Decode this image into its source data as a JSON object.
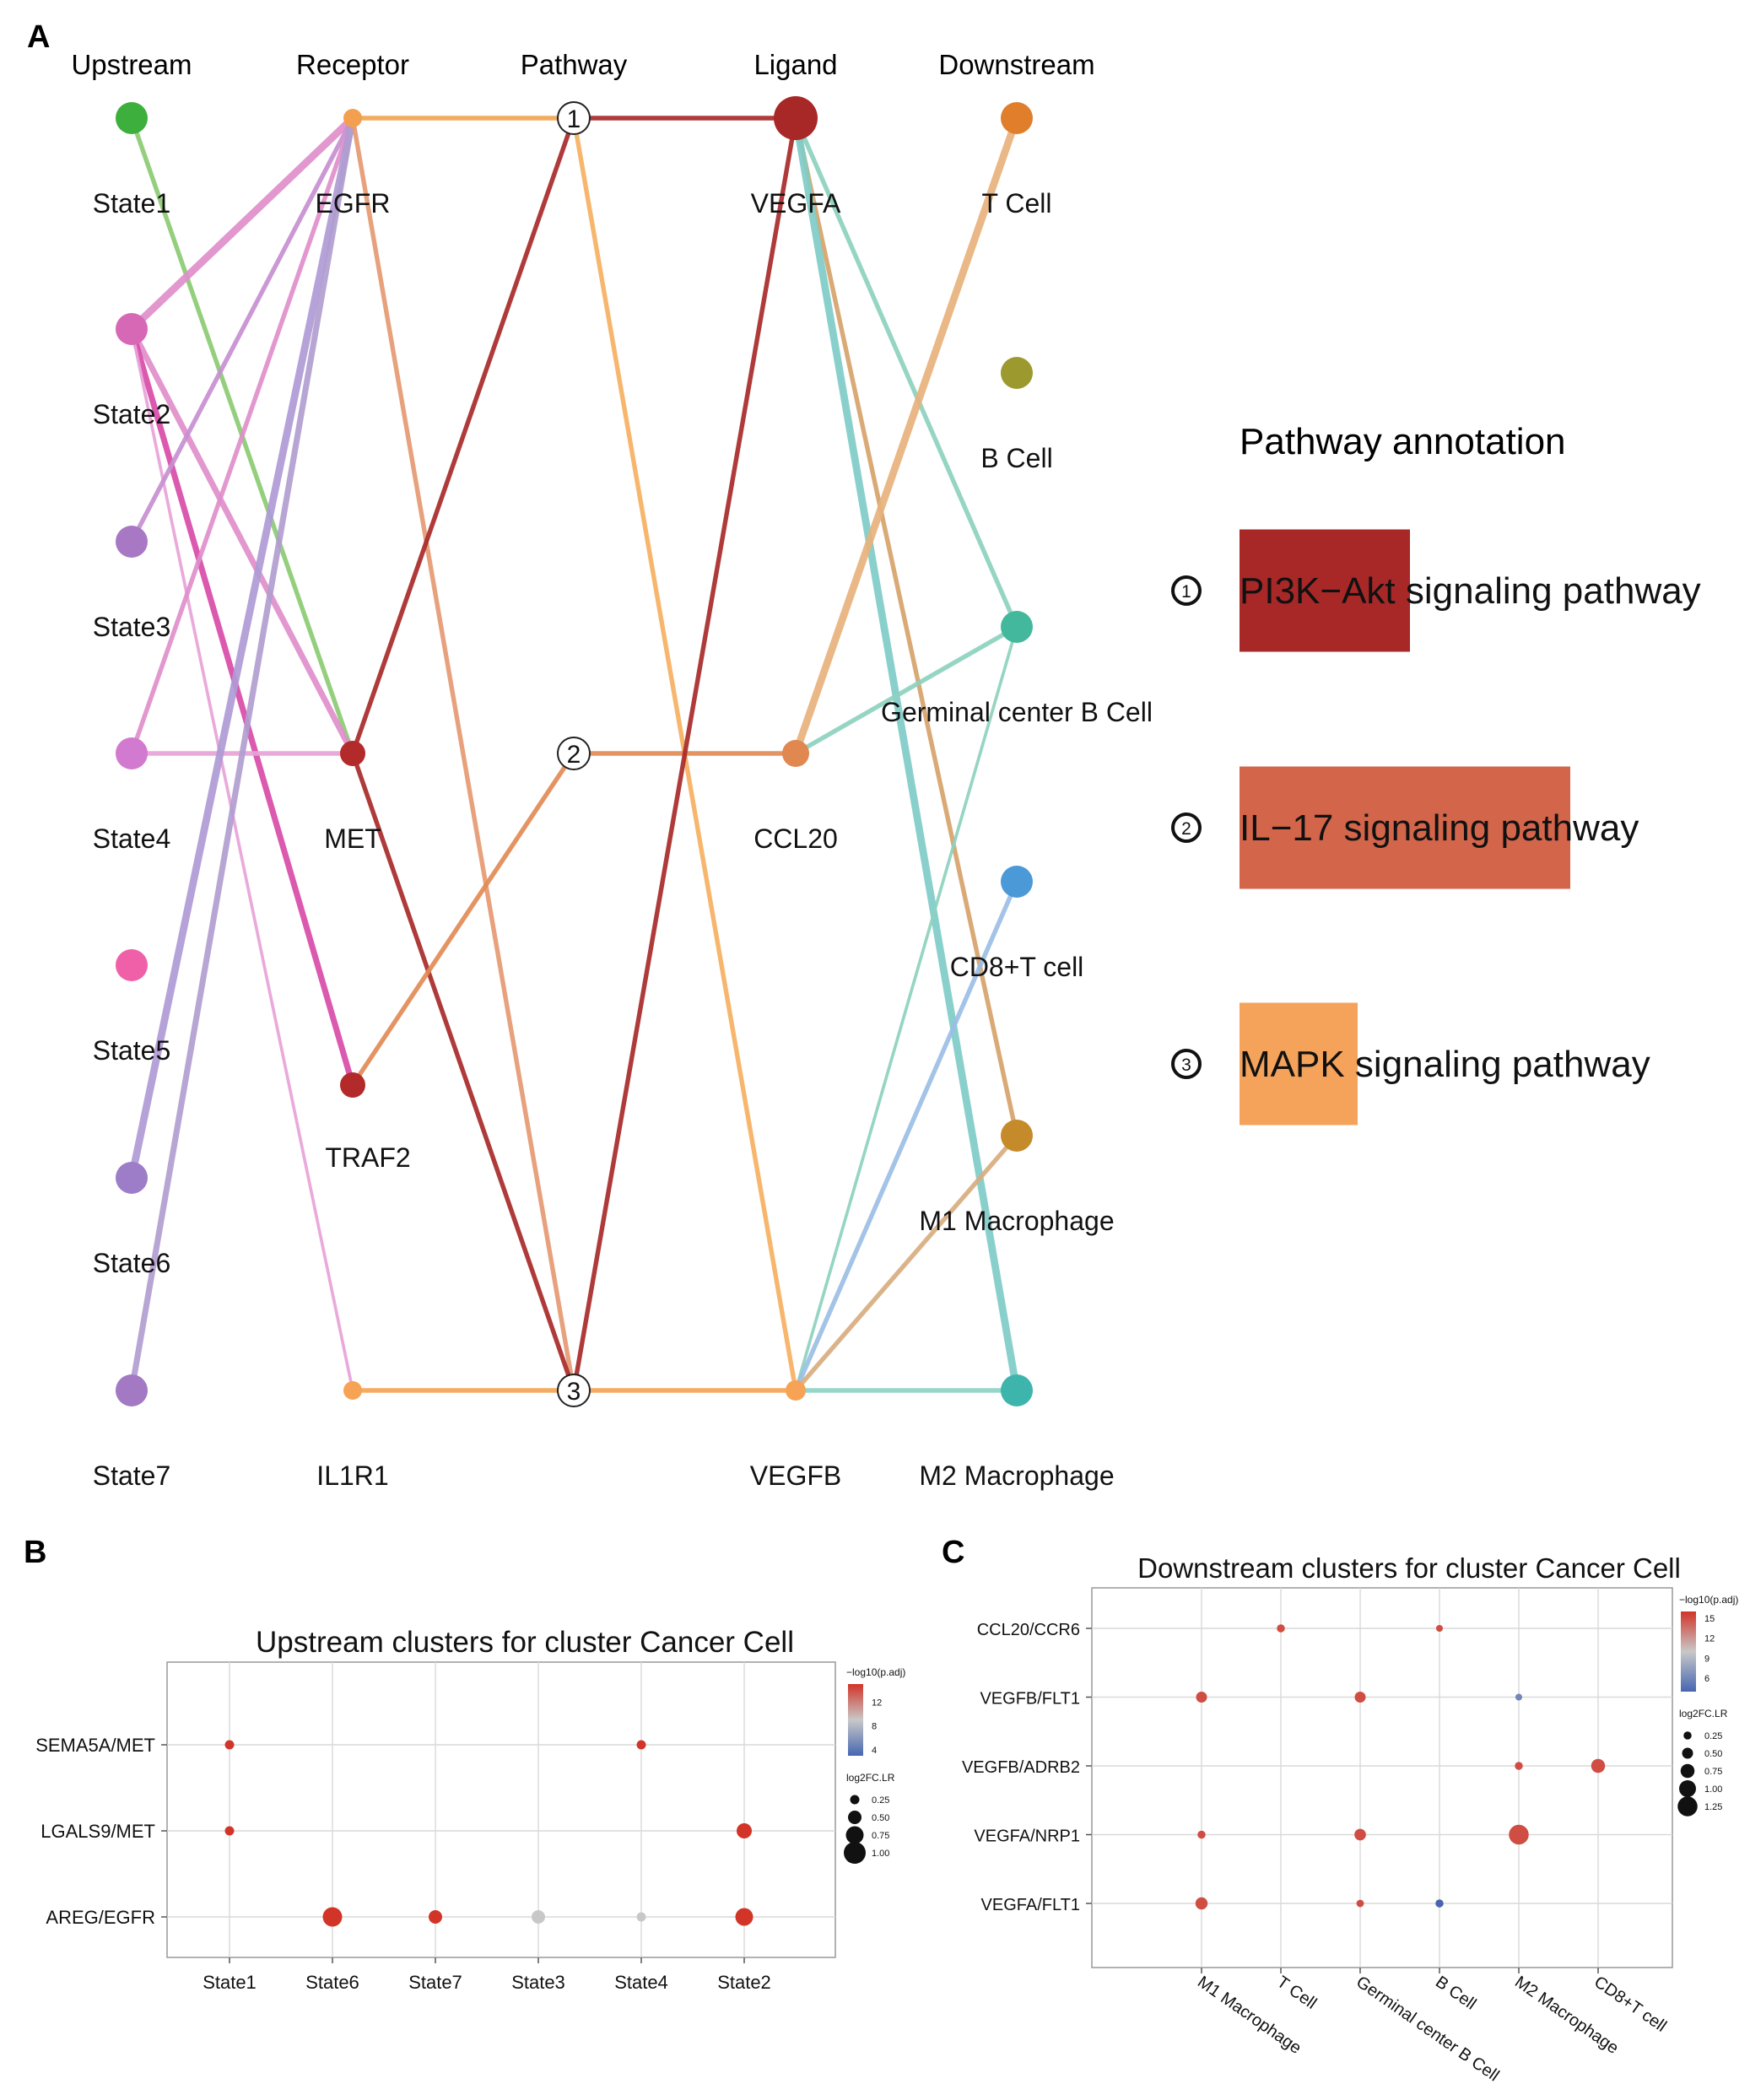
{
  "panels": {
    "A": {
      "letter": "A",
      "columns": [
        "Upstream",
        "Receptor",
        "Pathway",
        "Ligand",
        "Downstream"
      ],
      "annotation_title": "Pathway annotation"
    },
    "B": {
      "letter": "B"
    },
    "C": {
      "letter": "C"
    }
  },
  "chart_data": [
    {
      "type": "network",
      "title": "",
      "columns": {
        "upstream": [
          {
            "id": "State1",
            "label": "State1",
            "color": "#3CAF3C"
          },
          {
            "id": "State2",
            "label": "State2",
            "color": "#D668B6"
          },
          {
            "id": "State3",
            "label": "State3",
            "color": "#A878C4"
          },
          {
            "id": "State4",
            "label": "State4",
            "color": "#D27ACF"
          },
          {
            "id": "State5",
            "label": "State5",
            "color": "#F060A8"
          },
          {
            "id": "State6",
            "label": "State6",
            "color": "#9E7DC8"
          },
          {
            "id": "State7",
            "label": "State7",
            "color": "#A279C2"
          }
        ],
        "receptor": [
          {
            "id": "EGFR",
            "label": "EGFR",
            "color": "#F29F4F"
          },
          {
            "id": "MET",
            "label": "MET",
            "color": "#B22A2A"
          },
          {
            "id": "TRAF2",
            "label": "TRAF2",
            "color": "#B22A2A"
          },
          {
            "id": "IL1R1",
            "label": "IL1R1",
            "color": "#F6A355"
          }
        ],
        "pathway": [
          {
            "id": "1",
            "label": "1"
          },
          {
            "id": "2",
            "label": "2"
          },
          {
            "id": "3",
            "label": "3"
          }
        ],
        "ligand": [
          {
            "id": "VEGFA",
            "label": "VEGFA",
            "color": "#A82727"
          },
          {
            "id": "CCL20",
            "label": "CCL20",
            "color": "#E0884F"
          },
          {
            "id": "VEGFB",
            "label": "VEGFB",
            "color": "#F6A355"
          }
        ],
        "downstream": [
          {
            "id": "T Cell",
            "label": "T Cell",
            "color": "#E07E2C"
          },
          {
            "id": "B Cell",
            "label": "B Cell",
            "color": "#9C9A2E"
          },
          {
            "id": "Germinal center B Cell",
            "label": "Germinal center B Cell",
            "color": "#44B89C"
          },
          {
            "id": "CD8+T cell",
            "label": "CD8+T cell",
            "color": "#4C99D8"
          },
          {
            "id": "M1 Macrophage",
            "label": "M1 Macrophage",
            "color": "#C58A2A"
          },
          {
            "id": "M2 Macrophage",
            "label": "M2 Macrophage",
            "color": "#3EB5AC"
          }
        ]
      },
      "edges": [
        {
          "from": "State1",
          "to": "MET",
          "color": "#8CCB74",
          "weight": 2
        },
        {
          "from": "State2",
          "to": "EGFR",
          "color": "#E08FCB",
          "weight": 4
        },
        {
          "from": "State2",
          "to": "MET",
          "color": "#E08FCB",
          "weight": 3
        },
        {
          "from": "State2",
          "to": "TRAF2",
          "color": "#D94BA8",
          "weight": 3
        },
        {
          "from": "State2",
          "to": "IL1R1",
          "color": "#E8A3D8",
          "weight": 1
        },
        {
          "from": "State3",
          "to": "EGFR",
          "color": "#C790D2",
          "weight": 2
        },
        {
          "from": "State4",
          "to": "EGFR",
          "color": "#E08FCB",
          "weight": 2
        },
        {
          "from": "State4",
          "to": "MET",
          "color": "#E8A3D8",
          "weight": 2
        },
        {
          "from": "State6",
          "to": "EGFR",
          "color": "#AF9BD6",
          "weight": 4
        },
        {
          "from": "State7",
          "to": "EGFR",
          "color": "#B19ED0",
          "weight": 3
        },
        {
          "from": "EGFR",
          "to": "1",
          "color": "#F3A452",
          "weight": 2
        },
        {
          "from": "EGFR",
          "to": "3",
          "color": "#E69A72",
          "weight": 2
        },
        {
          "from": "MET",
          "to": "1",
          "color": "#A92A2A",
          "weight": 2
        },
        {
          "from": "MET",
          "to": "3",
          "color": "#A92A2A",
          "weight": 2
        },
        {
          "from": "TRAF2",
          "to": "2",
          "color": "#E28B55",
          "weight": 2
        },
        {
          "from": "IL1R1",
          "to": "3",
          "color": "#F5A454",
          "weight": 2
        },
        {
          "from": "1",
          "to": "VEGFA",
          "color": "#A92A2A",
          "weight": 2
        },
        {
          "from": "1",
          "to": "VEGFB",
          "color": "#F7B061",
          "weight": 2
        },
        {
          "from": "2",
          "to": "CCL20",
          "color": "#E28B55",
          "weight": 2
        },
        {
          "from": "3",
          "to": "VEGFA",
          "color": "#A92A2A",
          "weight": 2
        },
        {
          "from": "3",
          "to": "VEGFB",
          "color": "#F5A454",
          "weight": 2
        },
        {
          "from": "VEGFA",
          "to": "Germinal center B Cell",
          "color": "#8ED2BE",
          "weight": 2
        },
        {
          "from": "VEGFA",
          "to": "M1 Macrophage",
          "color": "#D6A36B",
          "weight": 2
        },
        {
          "from": "VEGFA",
          "to": "M2 Macrophage",
          "color": "#7FCDC8",
          "weight": 4
        },
        {
          "from": "CCL20",
          "to": "T Cell",
          "color": "#E8B37C",
          "weight": 4
        },
        {
          "from": "CCL20",
          "to": "Germinal center B Cell",
          "color": "#8ED2BE",
          "weight": 2
        },
        {
          "from": "VEGFB",
          "to": "Germinal center B Cell",
          "color": "#8ED2BE",
          "weight": 1
        },
        {
          "from": "VEGFB",
          "to": "CD8+T cell",
          "color": "#9CBEE6",
          "weight": 2
        },
        {
          "from": "VEGFB",
          "to": "M1 Macrophage",
          "color": "#D9AD80",
          "weight": 2
        },
        {
          "from": "VEGFB",
          "to": "M2 Macrophage",
          "color": "#8ED2C6",
          "weight": 2
        }
      ],
      "pathway_annotation": [
        {
          "number": "1",
          "name_highlight": "PI3K−Akt",
          "name_rest": " signaling pathway",
          "color": "#A82828"
        },
        {
          "number": "2",
          "name_highlight": "IL−17 signaling pathway",
          "name_rest": "",
          "color": "#D2654A"
        },
        {
          "number": "3",
          "name_highlight": "MAPK",
          "name_rest": " signaling pathway",
          "color": "#F5A35A"
        }
      ]
    },
    {
      "type": "scatter",
      "title": "Upstream clusters for cluster Cancer Cell",
      "categories_x": [
        "State1",
        "State6",
        "State7",
        "State3",
        "State4",
        "State2"
      ],
      "categories_y": [
        "SEMA5A/MET",
        "LGALS9/MET",
        "AREG/EGFR"
      ],
      "points": [
        {
          "x": "State1",
          "y": "SEMA5A/MET",
          "log2fc": 0.25,
          "neglog10p": 15
        },
        {
          "x": "State4",
          "y": "SEMA5A/MET",
          "log2fc": 0.25,
          "neglog10p": 15
        },
        {
          "x": "State1",
          "y": "LGALS9/MET",
          "log2fc": 0.25,
          "neglog10p": 15
        },
        {
          "x": "State2",
          "y": "LGALS9/MET",
          "log2fc": 0.6,
          "neglog10p": 15
        },
        {
          "x": "State6",
          "y": "AREG/EGFR",
          "log2fc": 0.85,
          "neglog10p": 15
        },
        {
          "x": "State7",
          "y": "AREG/EGFR",
          "log2fc": 0.5,
          "neglog10p": 15
        },
        {
          "x": "State3",
          "y": "AREG/EGFR",
          "log2fc": 0.5,
          "neglog10p": 9
        },
        {
          "x": "State4",
          "y": "AREG/EGFR",
          "log2fc": 0.25,
          "neglog10p": 9
        },
        {
          "x": "State2",
          "y": "AREG/EGFR",
          "log2fc": 0.75,
          "neglog10p": 15
        }
      ],
      "legend_color": {
        "title": "−log10(p.adj)",
        "ticks": [
          4,
          8,
          12
        ],
        "range": [
          3,
          15
        ]
      },
      "legend_size": {
        "title": "log2FC.LR",
        "values": [
          0.25,
          0.5,
          0.75,
          1.0
        ],
        "labels": [
          "0.25",
          "0.50",
          "0.75",
          "1.00"
        ]
      }
    },
    {
      "type": "scatter",
      "title": "Downstream clusters for cluster Cancer Cell",
      "categories_x": [
        "M1 Macrophage",
        "T Cell",
        "Germinal center B Cell",
        "B Cell",
        "M2 Macrophage",
        "CD8+T cell"
      ],
      "categories_y": [
        "CCL20/CCR6",
        "VEGFB/FLT1",
        "VEGFB/ADRB2",
        "VEGFA/NRP1",
        "VEGFA/FLT1"
      ],
      "points": [
        {
          "x": "T Cell",
          "y": "CCL20/CCR6",
          "log2fc": 0.25,
          "neglog10p": 15
        },
        {
          "x": "B Cell",
          "y": "CCL20/CCR6",
          "log2fc": 0.15,
          "neglog10p": 15
        },
        {
          "x": "M1 Macrophage",
          "y": "VEGFB/FLT1",
          "log2fc": 0.5,
          "neglog10p": 15
        },
        {
          "x": "Germinal center B Cell",
          "y": "VEGFB/FLT1",
          "log2fc": 0.5,
          "neglog10p": 15
        },
        {
          "x": "M2 Macrophage",
          "y": "VEGFB/FLT1",
          "log2fc": 0.15,
          "neglog10p": 6
        },
        {
          "x": "M2 Macrophage",
          "y": "VEGFB/ADRB2",
          "log2fc": 0.25,
          "neglog10p": 15
        },
        {
          "x": "CD8+T cell",
          "y": "VEGFB/ADRB2",
          "log2fc": 0.75,
          "neglog10p": 15
        },
        {
          "x": "M1 Macrophage",
          "y": "VEGFA/NRP1",
          "log2fc": 0.25,
          "neglog10p": 15
        },
        {
          "x": "Germinal center B Cell",
          "y": "VEGFA/NRP1",
          "log2fc": 0.55,
          "neglog10p": 15
        },
        {
          "x": "M2 Macrophage",
          "y": "VEGFA/NRP1",
          "log2fc": 1.25,
          "neglog10p": 15
        },
        {
          "x": "M1 Macrophage",
          "y": "VEGFA/FLT1",
          "log2fc": 0.6,
          "neglog10p": 15
        },
        {
          "x": "Germinal center B Cell",
          "y": "VEGFA/FLT1",
          "log2fc": 0.2,
          "neglog10p": 15
        },
        {
          "x": "B Cell",
          "y": "VEGFA/FLT1",
          "log2fc": 0.25,
          "neglog10p": 3
        }
      ],
      "legend_color": {
        "title": "−log10(p.adj)",
        "ticks": [
          6,
          9,
          12,
          15
        ],
        "range": [
          4,
          16
        ]
      },
      "legend_size": {
        "title": "log2FC.LR",
        "values": [
          0.25,
          0.5,
          0.75,
          1.0,
          1.25
        ],
        "labels": [
          "0.25",
          "0.50",
          "0.75",
          "1.00",
          "1.25"
        ]
      }
    }
  ]
}
